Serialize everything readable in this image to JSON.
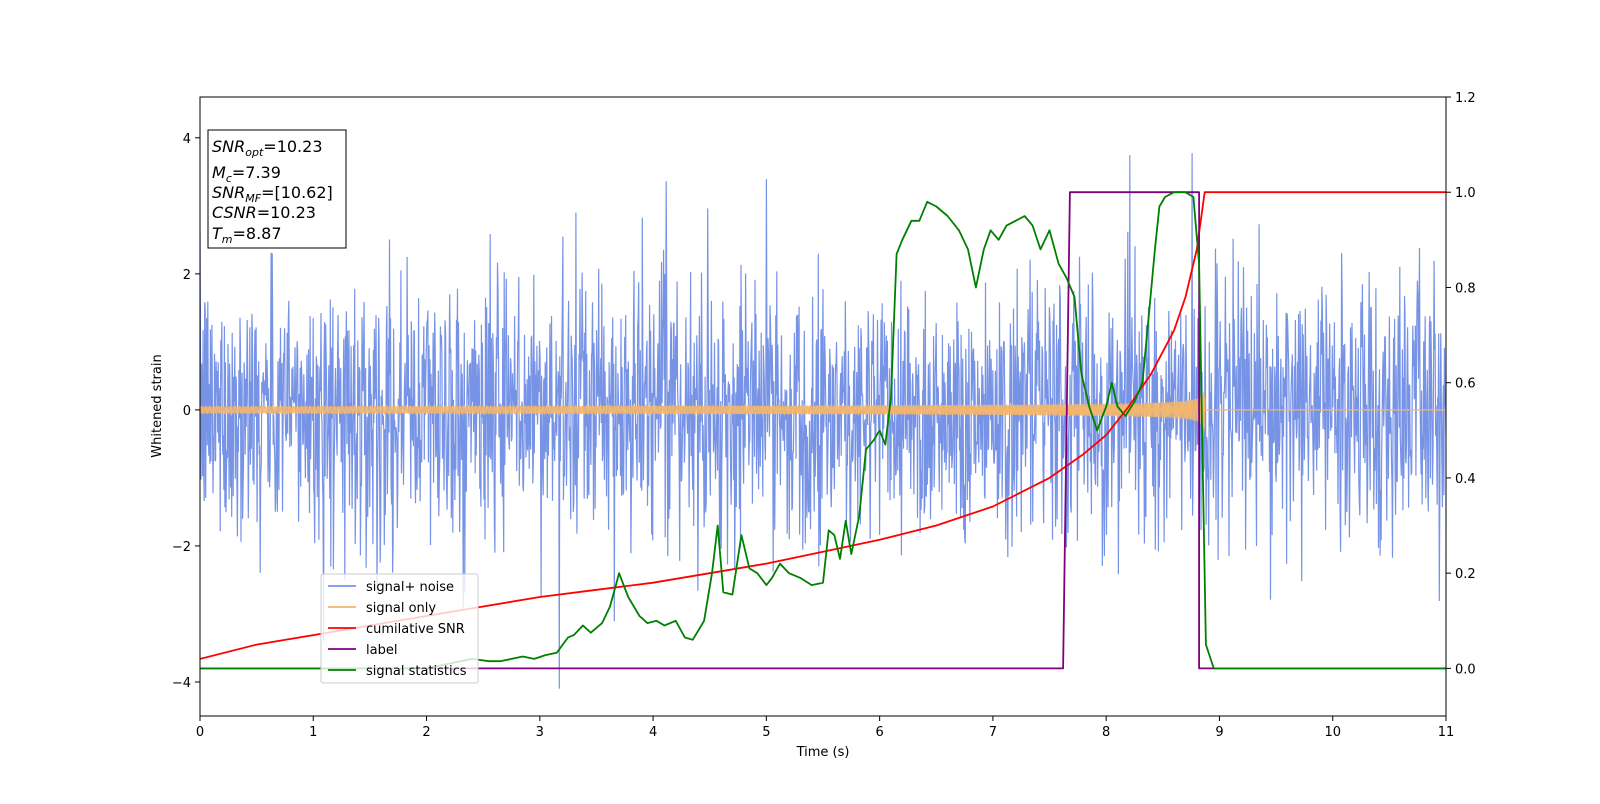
{
  "chart_data": {
    "type": "line",
    "xlabel": "Time (s)",
    "ylabel": "Whitened strain",
    "xlim": [
      0,
      11
    ],
    "ylim_left": [
      -4.5,
      4.6
    ],
    "ylim_right": [
      -0.1,
      1.2
    ],
    "xticks": [
      "0",
      "1",
      "2",
      "3",
      "4",
      "5",
      "6",
      "7",
      "8",
      "9",
      "10",
      "11"
    ],
    "yticks_left": [
      "−4",
      "−2",
      "0",
      "2",
      "4"
    ],
    "yticks_right": [
      "0.0",
      "0.2",
      "0.4",
      "0.6",
      "0.8",
      "1.0",
      "1.2"
    ],
    "grid": false,
    "legend_position": "lower-left",
    "info_box": {
      "snr_opt": "=10.23",
      "mc": "=7.39",
      "snr_mf": "=[10.62]",
      "csnr": "=10.23",
      "tm": "=8.87"
    },
    "series": [
      {
        "name": "signal+ noise",
        "axis": "left",
        "color": "#7793e6",
        "kind": "noise",
        "std": 0.95,
        "merger_time": 8.87
      },
      {
        "name": "signal only",
        "axis": "left",
        "color": "#f2b66e",
        "kind": "chirp",
        "amp_start": 0.05,
        "amp_end": 1.2,
        "merger_time": 8.87
      },
      {
        "name": "cumilative SNR",
        "axis": "right",
        "color": "#ff0000",
        "x": [
          0,
          0.5,
          1,
          1.5,
          2,
          2.5,
          3,
          3.5,
          4,
          4.5,
          5,
          5.5,
          6,
          6.5,
          7,
          7.5,
          7.8,
          8,
          8.2,
          8.4,
          8.6,
          8.7,
          8.8,
          8.87,
          9,
          10,
          11
        ],
        "y": [
          0.02,
          0.05,
          0.07,
          0.09,
          0.11,
          0.13,
          0.15,
          0.165,
          0.18,
          0.2,
          0.22,
          0.245,
          0.27,
          0.3,
          0.34,
          0.4,
          0.45,
          0.49,
          0.55,
          0.62,
          0.71,
          0.78,
          0.88,
          1.0,
          1.0,
          1.0,
          1.0
        ]
      },
      {
        "name": "label",
        "axis": "right",
        "color": "#800080",
        "x": [
          0,
          7.62,
          7.68,
          8.82,
          8.82,
          11
        ],
        "y": [
          0,
          0,
          1,
          1,
          0,
          0
        ]
      },
      {
        "name": "signal statistics",
        "axis": "right",
        "color": "#008000",
        "x": [
          0,
          2.0,
          2.4,
          2.55,
          2.65,
          2.75,
          2.85,
          2.95,
          3.05,
          3.15,
          3.25,
          3.3,
          3.38,
          3.45,
          3.55,
          3.62,
          3.7,
          3.78,
          3.88,
          3.95,
          4.03,
          4.1,
          4.2,
          4.28,
          4.35,
          4.45,
          4.52,
          4.57,
          4.62,
          4.7,
          4.78,
          4.85,
          4.92,
          5.0,
          5.05,
          5.12,
          5.2,
          5.3,
          5.4,
          5.5,
          5.55,
          5.6,
          5.65,
          5.7,
          5.75,
          5.82,
          5.88,
          5.95,
          6.0,
          6.05,
          6.1,
          6.15,
          6.2,
          6.28,
          6.35,
          6.42,
          6.5,
          6.6,
          6.7,
          6.78,
          6.85,
          6.92,
          6.98,
          7.05,
          7.12,
          7.2,
          7.28,
          7.35,
          7.42,
          7.5,
          7.58,
          7.65,
          7.72,
          7.78,
          7.85,
          7.92,
          8.0,
          8.05,
          8.1,
          8.17,
          8.25,
          8.32,
          8.38,
          8.43,
          8.47,
          8.52,
          8.6,
          8.7,
          8.77,
          8.82,
          8.88,
          8.95,
          9.1,
          11
        ],
        "y": [
          0.0,
          0.0,
          0.02,
          0.015,
          0.015,
          0.02,
          0.025,
          0.02,
          0.028,
          0.033,
          0.065,
          0.07,
          0.09,
          0.075,
          0.095,
          0.13,
          0.2,
          0.15,
          0.11,
          0.095,
          0.1,
          0.09,
          0.1,
          0.065,
          0.06,
          0.1,
          0.2,
          0.3,
          0.16,
          0.155,
          0.28,
          0.21,
          0.2,
          0.175,
          0.19,
          0.22,
          0.2,
          0.19,
          0.175,
          0.18,
          0.29,
          0.28,
          0.23,
          0.31,
          0.24,
          0.32,
          0.46,
          0.48,
          0.5,
          0.47,
          0.57,
          0.87,
          0.9,
          0.94,
          0.94,
          0.98,
          0.97,
          0.95,
          0.92,
          0.88,
          0.8,
          0.88,
          0.92,
          0.9,
          0.93,
          0.94,
          0.95,
          0.93,
          0.88,
          0.92,
          0.85,
          0.82,
          0.78,
          0.62,
          0.55,
          0.5,
          0.55,
          0.6,
          0.55,
          0.53,
          0.56,
          0.6,
          0.75,
          0.88,
          0.97,
          0.99,
          1.0,
          1.0,
          0.99,
          0.85,
          0.05,
          0.0,
          0.0,
          0.0
        ]
      }
    ]
  }
}
